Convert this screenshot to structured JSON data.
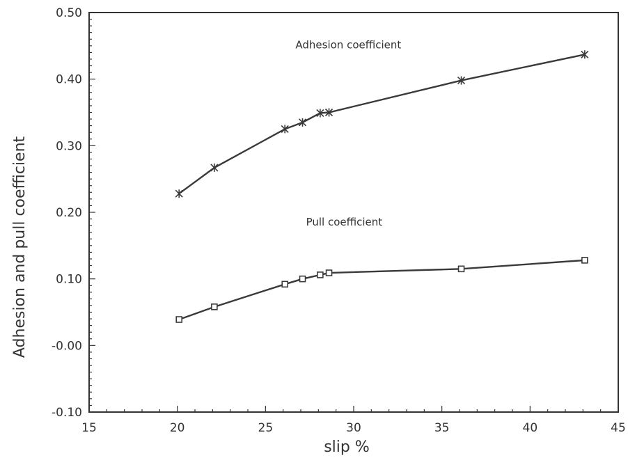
{
  "chart_data": {
    "type": "line",
    "title": "",
    "xlabel": "slip %",
    "ylabel": "Adhesion and pull coefficient",
    "xlim": [
      15,
      45
    ],
    "ylim": [
      -0.1,
      0.5
    ],
    "x_ticks": [
      15,
      20,
      25,
      30,
      35,
      40,
      45
    ],
    "x_tick_labels": [
      "15",
      "20",
      "25",
      "30",
      "35",
      "40",
      "45"
    ],
    "y_ticks": [
      -0.1,
      0.0,
      0.1,
      0.2,
      0.3,
      0.4,
      0.5
    ],
    "y_tick_labels": [
      "-0.10",
      "-0.00",
      "0.10",
      "0.20",
      "0.30",
      "0.40",
      "0.50"
    ],
    "grid": false,
    "legend": "none",
    "annotations": [
      {
        "text": "Adhesion coefficient",
        "x": 26.7,
        "y": 0.446
      },
      {
        "text": "Pull coefficient",
        "x": 27.3,
        "y": 0.18
      }
    ],
    "series": [
      {
        "label": "Adhesion coefficient",
        "marker": "star",
        "x": [
          20.1,
          22.1,
          26.1,
          27.1,
          28.1,
          28.6,
          36.1,
          43.1
        ],
        "y": [
          0.228,
          0.267,
          0.325,
          0.335,
          0.349,
          0.35,
          0.398,
          0.437
        ]
      },
      {
        "label": "Pull coefficient",
        "marker": "square",
        "x": [
          20.1,
          22.1,
          26.1,
          27.1,
          28.1,
          28.6,
          36.1,
          43.1
        ],
        "y": [
          0.039,
          0.058,
          0.092,
          0.1,
          0.106,
          0.109,
          0.115,
          0.128
        ]
      }
    ],
    "colors": {
      "line": "#3a3a3a",
      "axis": "#333333",
      "background": "#ffffff"
    }
  }
}
